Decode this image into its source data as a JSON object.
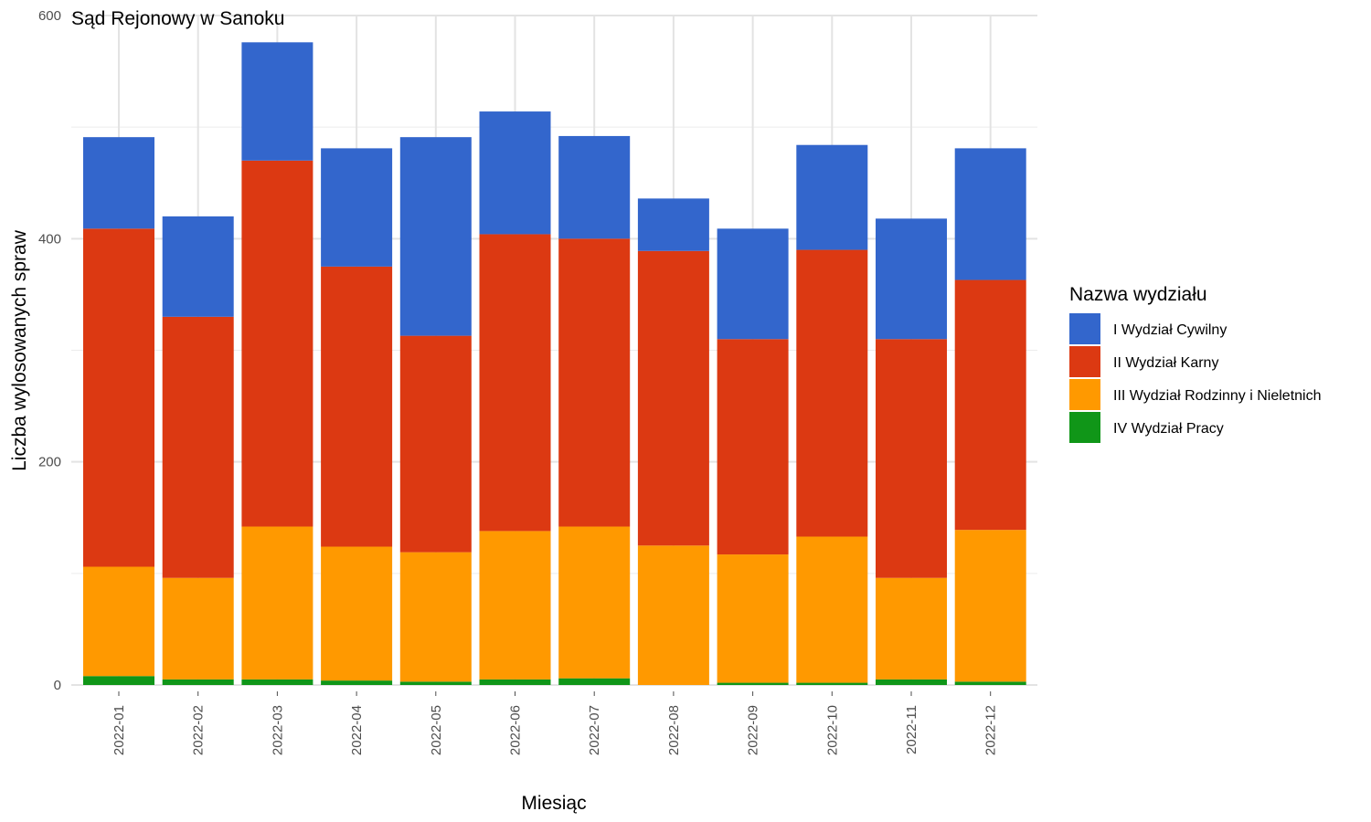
{
  "chart_data": {
    "type": "bar",
    "stacked": true,
    "title": "Sąd Rejonowy w Sanoku",
    "xlabel": "Miesiąc",
    "ylabel": "Liczba wylosowanych spraw",
    "ylim": [
      0,
      600
    ],
    "yticks": [
      0,
      200,
      400,
      600
    ],
    "grid": true,
    "legend_title": "Nazwa wydziału",
    "legend_position": "right",
    "categories": [
      "2022-01",
      "2022-02",
      "2022-03",
      "2022-04",
      "2022-05",
      "2022-06",
      "2022-07",
      "2022-08",
      "2022-09",
      "2022-10",
      "2022-11",
      "2022-12"
    ],
    "series": [
      {
        "name": "IV Wydział Pracy",
        "color": "#109618",
        "values": [
          8,
          5,
          5,
          4,
          3,
          5,
          6,
          0,
          2,
          2,
          5,
          3
        ]
      },
      {
        "name": "III Wydział Rodzinny i Nieletnich",
        "color": "#FF9900",
        "values": [
          98,
          91,
          137,
          120,
          116,
          133,
          136,
          125,
          115,
          131,
          91,
          136
        ]
      },
      {
        "name": "II Wydział Karny",
        "color": "#DC3912",
        "values": [
          303,
          234,
          328,
          251,
          194,
          266,
          258,
          264,
          193,
          257,
          214,
          224
        ]
      },
      {
        "name": "I Wydział Cywilny",
        "color": "#3366CC",
        "values": [
          82,
          90,
          106,
          106,
          178,
          110,
          92,
          47,
          99,
          94,
          108,
          118
        ]
      }
    ],
    "legend_order": [
      "I Wydział Cywilny",
      "II Wydział Karny",
      "III Wydział Rodzinny i Nieletnich",
      "IV Wydział Pracy"
    ]
  }
}
